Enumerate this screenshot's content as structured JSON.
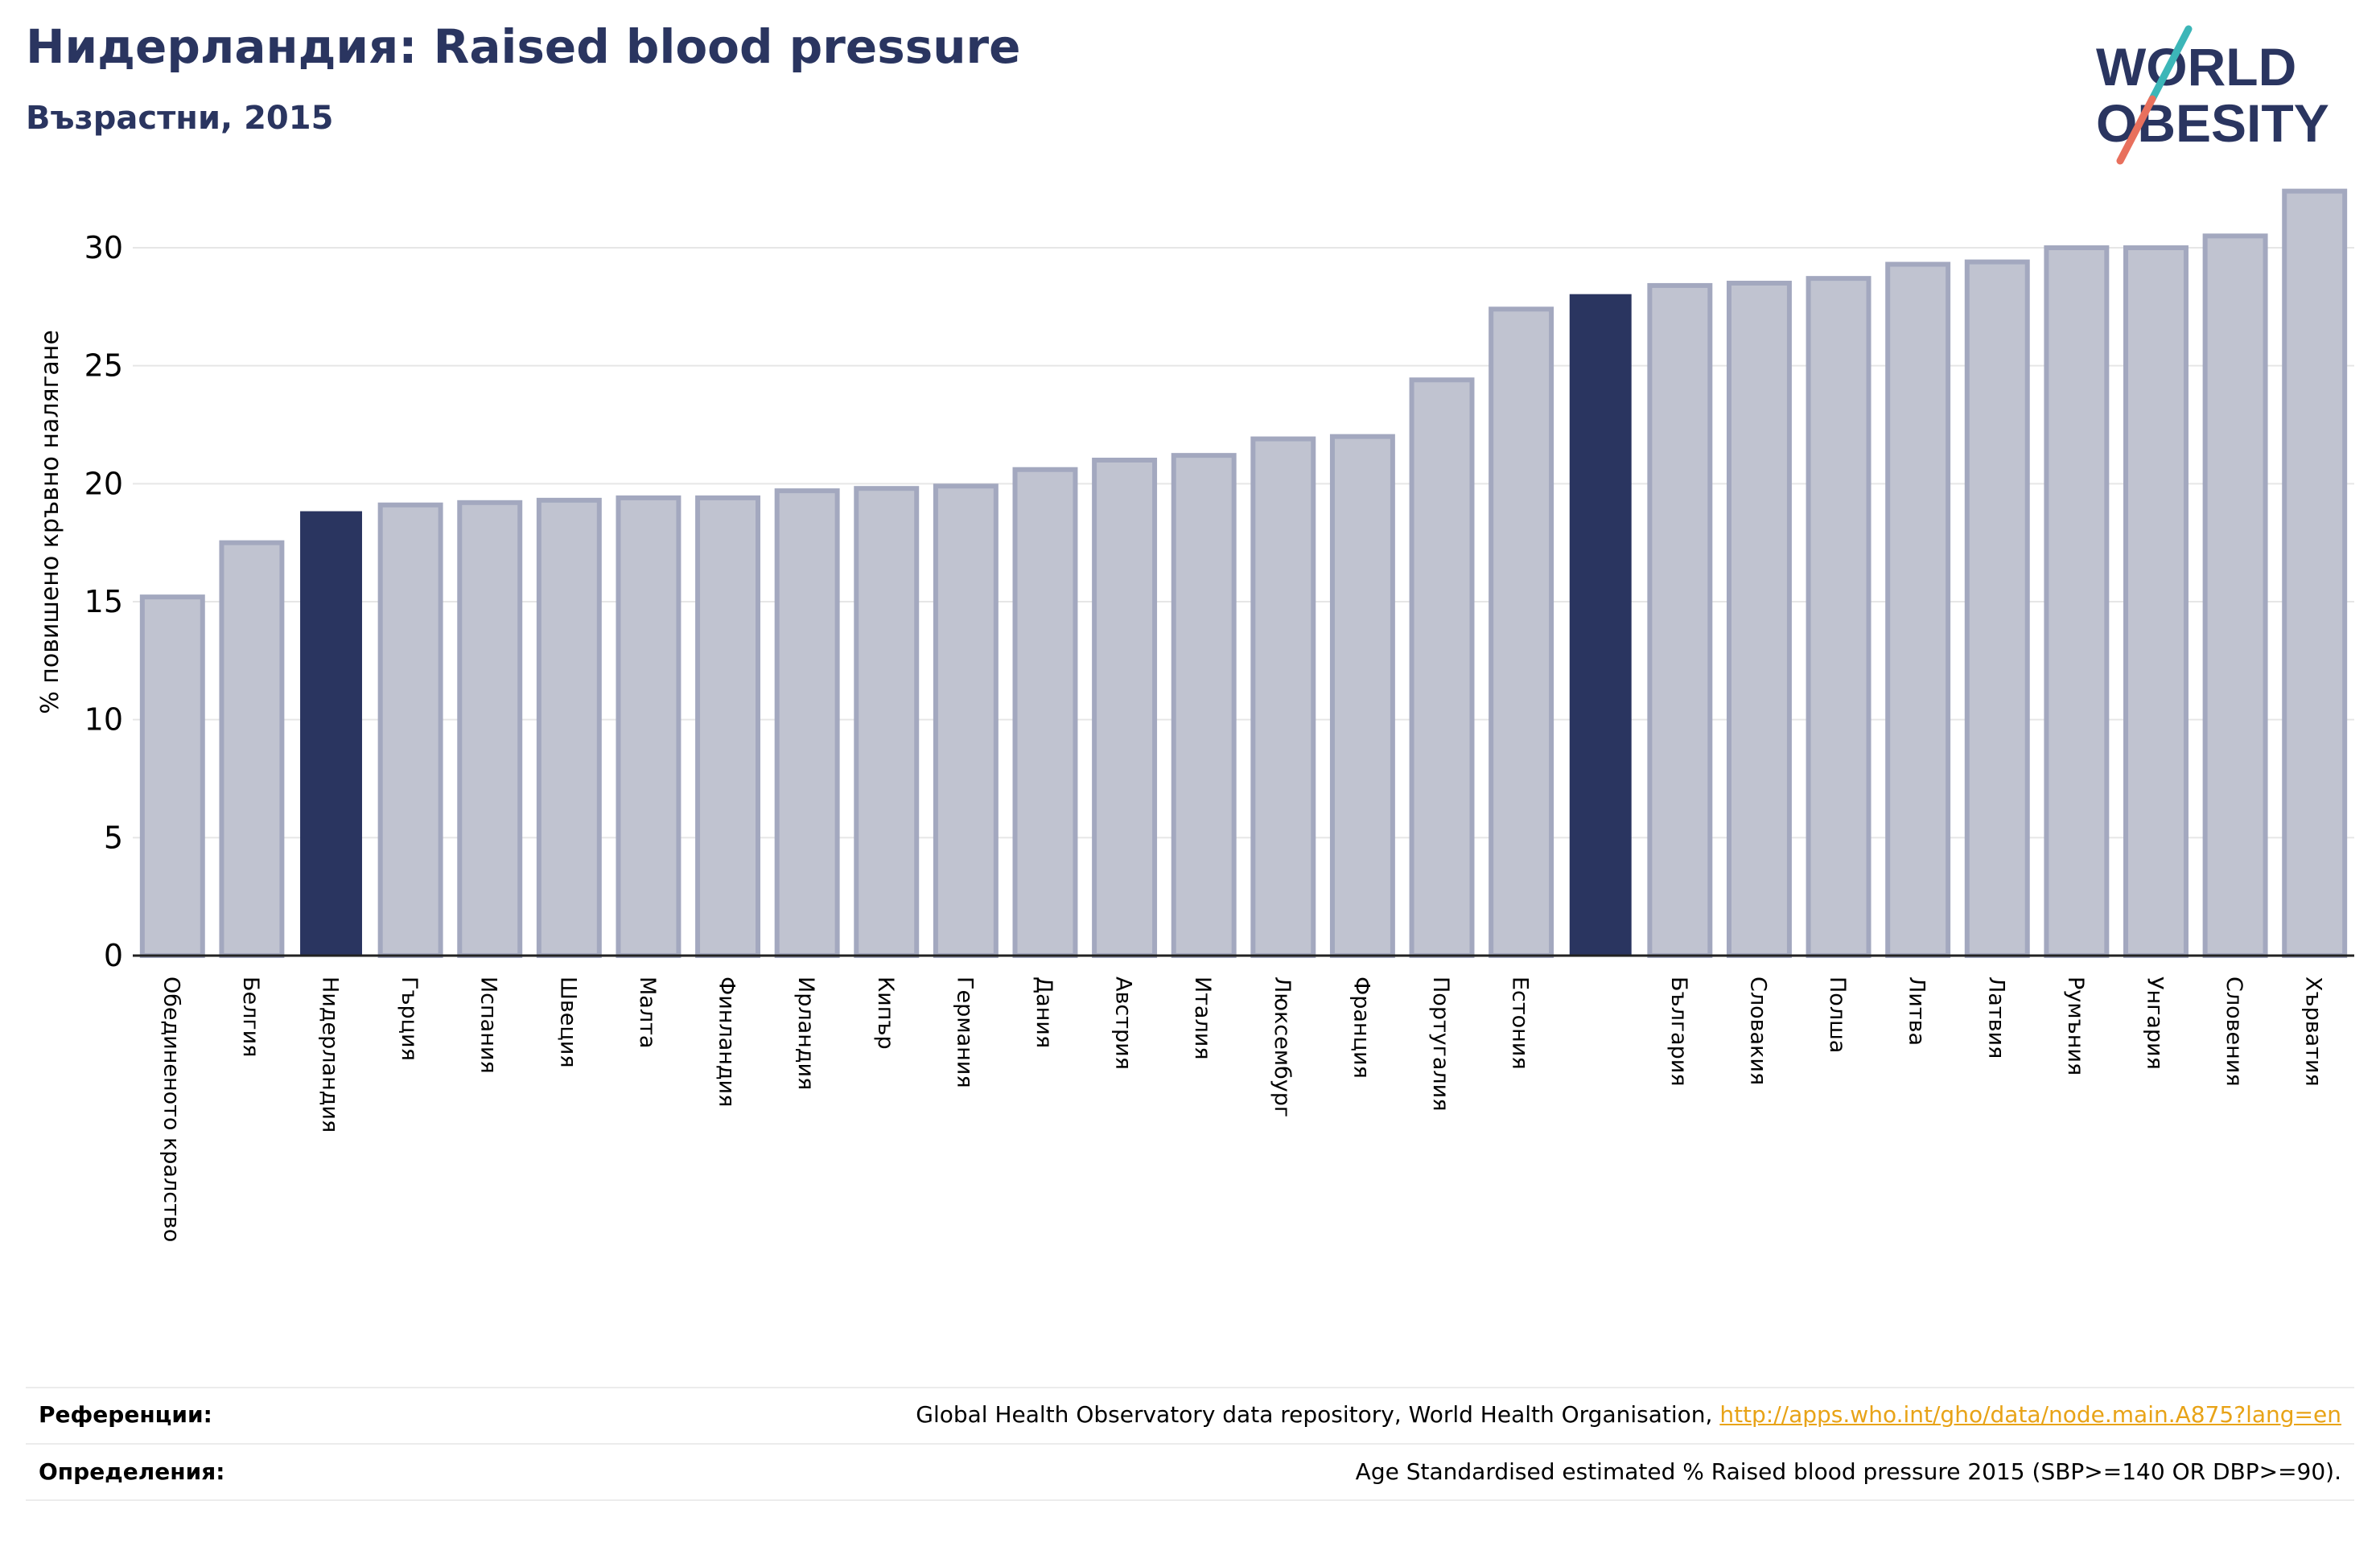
{
  "header": {
    "title": "Нидерландия: Raised blood pressure",
    "subtitle": "Възрастни, 2015"
  },
  "logo": {
    "line1": "WORLD",
    "line2": "OBESITY"
  },
  "colors": {
    "accent": "#2a3560",
    "bar": "#c0c3d0",
    "bar_edge": "#a3a8bf",
    "logo_teal": "#3cb6b8",
    "logo_red": "#e8705d",
    "link": "#e8a317"
  },
  "chart_data": {
    "type": "bar",
    "ylabel": "% повишено кръвно налягане",
    "ylim": [
      0,
      33
    ],
    "yticks": [
      0,
      5,
      10,
      15,
      20,
      25,
      30
    ],
    "grid": true,
    "categories": [
      "Обединеното кралство",
      "Белгия",
      "Нидерландия",
      "Гърция",
      "Испания",
      "Швеция",
      "Малта",
      "Финландия",
      "Ирландия",
      "Кипър",
      "Германия",
      "Дания",
      "Австрия",
      "Италия",
      "Люксембург",
      "Франция",
      "Португалия",
      "Естония",
      "",
      "България",
      "Словакия",
      "Полша",
      "Литва",
      "Латвия",
      "Румъния",
      "Унгария",
      "Словения",
      "Хърватия"
    ],
    "values": [
      15.2,
      17.5,
      18.8,
      19.1,
      19.2,
      19.3,
      19.4,
      19.4,
      19.7,
      19.8,
      19.9,
      20.6,
      21.0,
      21.2,
      21.9,
      22.0,
      24.4,
      27.4,
      28.0,
      28.4,
      28.5,
      28.7,
      29.3,
      29.4,
      30.0,
      30.0,
      30.5,
      32.4
    ],
    "highlighted": [
      2,
      18
    ]
  },
  "footer": {
    "references_label": "Референции:",
    "references_text": "Global Health Observatory data repository, World Health Organisation, ",
    "references_link": "http://apps.who.int/gho/data/node.main.A875?lang=en",
    "definitions_label": "Определения:",
    "definitions_text": "Age Standardised estimated % Raised blood pressure 2015 (SBP>=140 OR DBP>=90)."
  }
}
